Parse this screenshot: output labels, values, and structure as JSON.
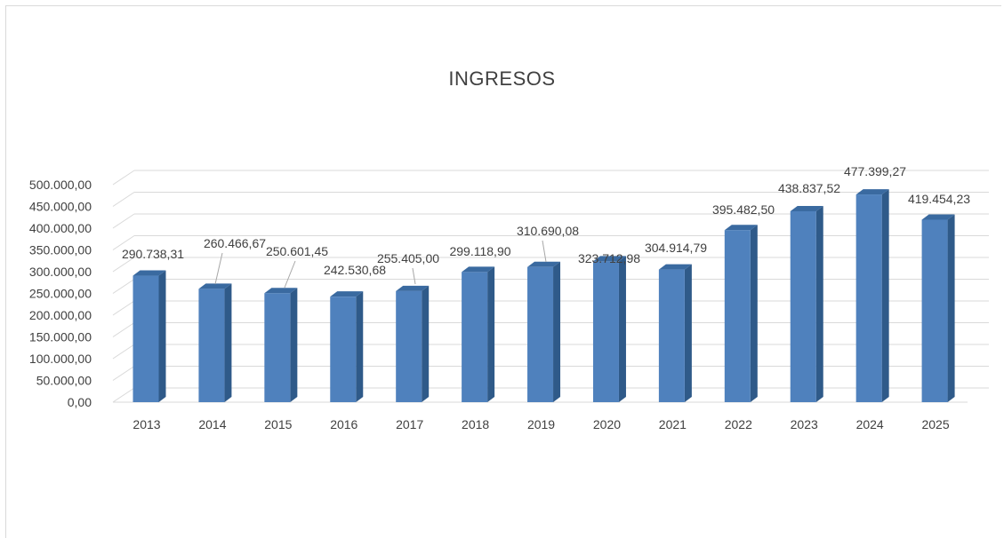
{
  "chart_data": {
    "type": "bar",
    "title": "INGRESOS",
    "xlabel": "",
    "ylabel": "",
    "categories": [
      "2013",
      "2014",
      "2015",
      "2016",
      "2017",
      "2018",
      "2019",
      "2020",
      "2021",
      "2022",
      "2023",
      "2024",
      "2025"
    ],
    "values": [
      290738.31,
      260466.67,
      250601.45,
      242530.68,
      255405.0,
      299118.9,
      310690.08,
      323712.98,
      304914.79,
      395482.5,
      438837.52,
      477399.27,
      419454.23
    ],
    "value_labels": [
      "290.738,31",
      "260.466,67",
      "250.601,45",
      "242.530,68",
      "255.405,00",
      "299.118,90",
      "310.690,08",
      "323.712,98",
      "304.914,79",
      "395.482,50",
      "438.837,52",
      "477.399,27",
      "419.454,23"
    ],
    "ylim": [
      0,
      500000
    ],
    "y_ticks": [
      0,
      50000,
      100000,
      150000,
      200000,
      250000,
      300000,
      350000,
      400000,
      450000,
      500000
    ],
    "y_tick_labels": [
      "0,00",
      "50.000,00",
      "100.000,00",
      "150.000,00",
      "200.000,00",
      "250.000,00",
      "300.000,00",
      "350.000,00",
      "400.000,00",
      "450.000,00",
      "500.000,00"
    ],
    "grid": true,
    "style": "3d-column",
    "colors": {
      "front": "#4f81bd",
      "side": "#2f5a89",
      "top": "#3a6aa0",
      "grid": "#d9d9d9",
      "text": "#404040"
    }
  }
}
